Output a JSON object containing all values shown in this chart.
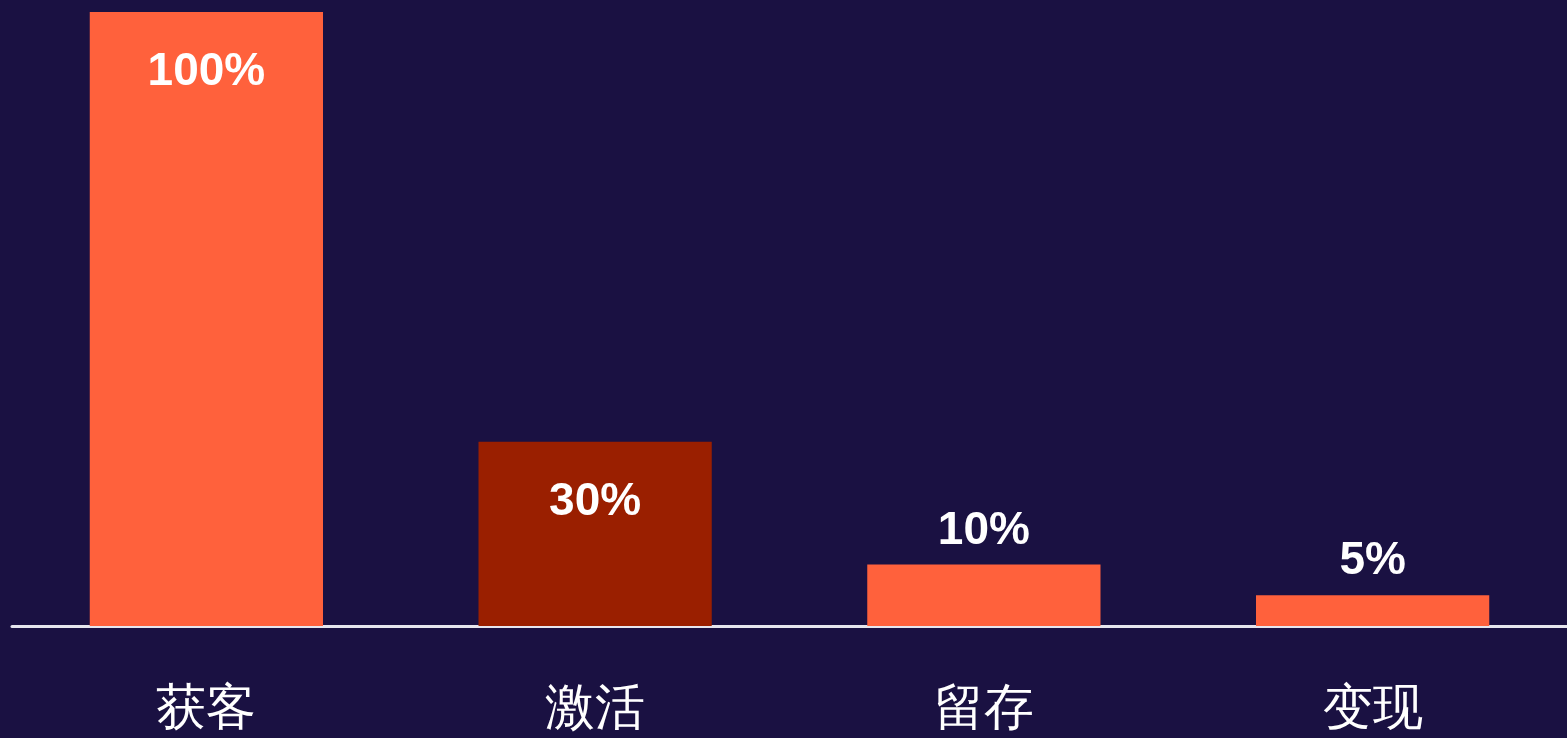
{
  "chart_data": {
    "type": "bar",
    "categories": [
      "获客",
      "激活",
      "留存",
      "变现"
    ],
    "values": [
      100,
      30,
      10,
      5
    ],
    "value_labels": [
      "100%",
      "30%",
      "10%",
      "5%"
    ],
    "colors": [
      "#ff613c",
      "#9a1f00",
      "#ff613c",
      "#ff613c"
    ],
    "ylim": [
      0,
      100
    ],
    "tick_labels": "x"
  }
}
